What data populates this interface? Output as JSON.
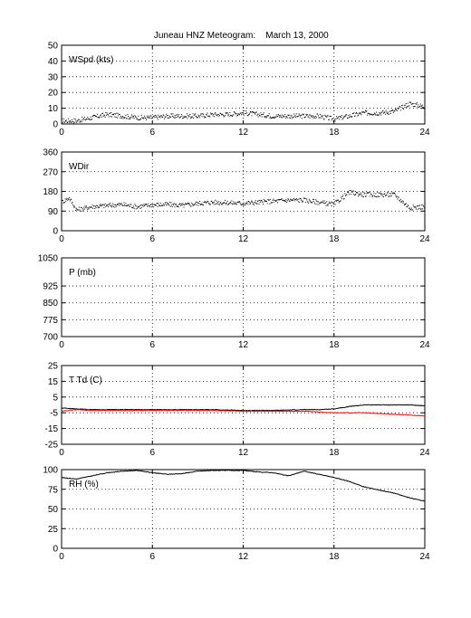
{
  "title": "Juneau HNZ Meteogram:",
  "date": "March 13, 2000",
  "x_ticks": [
    "0",
    "6",
    "12",
    "18",
    "24"
  ],
  "colors": {
    "axes": "#000000",
    "grid": "#000000",
    "series_black": "#000000",
    "series_red": "#ff0000",
    "background": "#ffffff"
  },
  "chart_data": [
    {
      "type": "scatter",
      "label": "WSpd (kts)",
      "xlim": [
        0,
        24
      ],
      "ylim": [
        0,
        50
      ],
      "yticks": [
        "0",
        "10",
        "20",
        "30",
        "40",
        "50"
      ],
      "grid": true,
      "series": [
        {
          "color": "#000000",
          "x": [
            0,
            1,
            2,
            3,
            4,
            5,
            6,
            7,
            8,
            9,
            10,
            11,
            12,
            13,
            14,
            15,
            16,
            17,
            18,
            19,
            20,
            21,
            22,
            23,
            24
          ],
          "y": [
            2,
            2,
            4,
            6,
            5,
            4,
            4,
            5,
            5,
            5,
            6,
            6,
            7,
            6,
            5,
            5,
            5,
            5,
            3,
            5,
            7,
            7,
            8,
            13,
            11
          ]
        }
      ]
    },
    {
      "type": "scatter",
      "label": "WDir",
      "xlim": [
        0,
        24
      ],
      "ylim": [
        0,
        360
      ],
      "yticks": [
        "0",
        "90",
        "180",
        "270",
        "360"
      ],
      "grid": true,
      "series": [
        {
          "color": "#000000",
          "x": [
            0,
            0.5,
            1,
            2,
            3,
            4,
            5,
            6,
            7,
            8,
            9,
            10,
            11,
            12,
            13,
            14,
            15,
            16,
            17,
            18,
            19,
            20,
            21,
            22,
            23,
            24
          ],
          "y": [
            130,
            150,
            95,
            110,
            115,
            120,
            110,
            118,
            120,
            115,
            125,
            130,
            128,
            125,
            130,
            135,
            140,
            140,
            130,
            120,
            175,
            165,
            165,
            165,
            105,
            110
          ]
        }
      ]
    },
    {
      "type": "line",
      "label": "P (mb)",
      "xlim": [
        0,
        24
      ],
      "ylim": [
        700,
        1050
      ],
      "yticks": [
        "700",
        "775",
        "850",
        "925",
        "1050"
      ],
      "grid": true,
      "series": []
    },
    {
      "type": "line",
      "label": "T Td (C)",
      "xlim": [
        0,
        24
      ],
      "ylim": [
        -25,
        25
      ],
      "yticks": [
        "-25",
        "-15",
        "-5",
        "5",
        "15",
        "25"
      ],
      "grid": true,
      "series": [
        {
          "color": "#000000",
          "x": [
            0,
            1,
            2,
            4,
            6,
            8,
            10,
            12,
            14,
            16,
            17,
            18,
            19,
            20,
            21,
            22,
            23,
            24
          ],
          "y": [
            -2,
            -2.5,
            -3,
            -3,
            -3,
            -3,
            -3,
            -3.5,
            -3.5,
            -3,
            -3,
            -2.5,
            -1,
            0,
            0,
            0,
            0,
            -0.5
          ]
        },
        {
          "color": "#ff0000",
          "x": [
            0,
            1,
            2,
            4,
            6,
            8,
            10,
            12,
            14,
            16,
            17,
            18,
            19,
            20,
            21,
            22,
            23,
            24
          ],
          "y": [
            -4,
            -3,
            -3.5,
            -3.5,
            -3.5,
            -3.5,
            -3.5,
            -4,
            -4,
            -4,
            -4.5,
            -5,
            -5,
            -5,
            -5.5,
            -6,
            -6.5,
            -7
          ]
        }
      ]
    },
    {
      "type": "line",
      "label": "RH (%)",
      "xlim": [
        0,
        24
      ],
      "ylim": [
        0,
        100
      ],
      "yticks": [
        "0",
        "25",
        "50",
        "75",
        "100"
      ],
      "grid": true,
      "series": [
        {
          "color": "#000000",
          "x": [
            0,
            1,
            2,
            3,
            4,
            5,
            6,
            7,
            8,
            9,
            10,
            11,
            12,
            13,
            14,
            15,
            16,
            17,
            18,
            19,
            20,
            21,
            22,
            23,
            24
          ],
          "y": [
            90,
            88,
            92,
            96,
            98,
            99,
            96,
            94,
            95,
            98,
            99,
            99,
            99,
            97,
            96,
            92,
            98,
            94,
            90,
            85,
            78,
            74,
            70,
            64,
            60
          ]
        }
      ]
    }
  ]
}
